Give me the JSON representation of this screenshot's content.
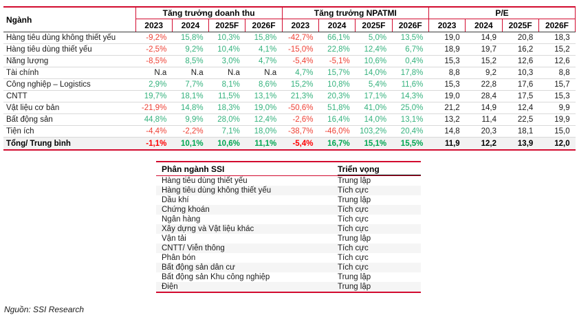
{
  "main_table": {
    "corner_header": "Ngành",
    "groups": [
      {
        "label": "Tăng trưởng doanh thu"
      },
      {
        "label": "Tăng trưởng NPATMI"
      },
      {
        "label": "P/E"
      }
    ],
    "years": [
      "2023",
      "2024",
      "2025F",
      "2026F"
    ],
    "rows": [
      {
        "name": "Hàng tiêu dùng không thiết yếu",
        "values": [
          "-9,2%",
          "15,8%",
          "10,3%",
          "15,8%",
          "-42,7%",
          "66,1%",
          "5,0%",
          "13,5%",
          "19,0",
          "14,9",
          "20,8",
          "18,3"
        ]
      },
      {
        "name": "Hàng tiêu dùng thiết yếu",
        "values": [
          "-2,5%",
          "9,2%",
          "10,4%",
          "4,1%",
          "-15,0%",
          "22,8%",
          "12,4%",
          "6,7%",
          "18,9",
          "19,7",
          "16,2",
          "15,2"
        ]
      },
      {
        "name": "Năng lượng",
        "values": [
          "-8,5%",
          "8,5%",
          "3,0%",
          "4,7%",
          "-5,4%",
          "-5,1%",
          "10,6%",
          "0,4%",
          "15,3",
          "15,2",
          "12,6",
          "12,6"
        ]
      },
      {
        "name": "Tài chính",
        "values": [
          "N.a",
          "N.a",
          "N.a",
          "N.a",
          "4,7%",
          "15,7%",
          "14,0%",
          "17,8%",
          "8,8",
          "9,2",
          "10,3",
          "8,8"
        ]
      },
      {
        "name": "Công nghiệp – Logistics",
        "values": [
          "2,9%",
          "7,7%",
          "8,1%",
          "8,6%",
          "15,2%",
          "10,8%",
          "5,4%",
          "11,6%",
          "15,3",
          "22,8",
          "17,6",
          "15,7"
        ]
      },
      {
        "name": "CNTT",
        "values": [
          "19,7%",
          "18,1%",
          "11,5%",
          "13,1%",
          "21,3%",
          "20,3%",
          "17,1%",
          "14,3%",
          "19,0",
          "28,4",
          "17,5",
          "15,3"
        ]
      },
      {
        "name": "Vật liệu cơ bản",
        "values": [
          "-21,9%",
          "14,8%",
          "18,3%",
          "19,0%",
          "-50,6%",
          "51,8%",
          "41,0%",
          "25,0%",
          "21,2",
          "14,9",
          "12,4",
          "9,9"
        ]
      },
      {
        "name": "Bất động sản",
        "values": [
          "44,8%",
          "9,9%",
          "28,0%",
          "12,4%",
          "-2,6%",
          "16,4%",
          "14,0%",
          "13,1%",
          "13,2",
          "11,4",
          "22,5",
          "19,9"
        ]
      },
      {
        "name": "Tiện ích",
        "values": [
          "-4,4%",
          "-2,2%",
          "7,1%",
          "18,0%",
          "-38,7%",
          "-46,0%",
          "103,2%",
          "20,4%",
          "14,8",
          "20,3",
          "18,1",
          "15,0"
        ]
      }
    ],
    "total_row": {
      "name": "Tổng/ Trung bình",
      "values": [
        "-1,1%",
        "10,1%",
        "10,6%",
        "11,1%",
        "-5,4%",
        "16,7%",
        "15,1%",
        "15,5%",
        "11,9",
        "12,2",
        "13,9",
        "12,0"
      ]
    }
  },
  "outlook_table": {
    "headers": {
      "sector": "Phân ngành SSI",
      "outlook": "Triển vọng"
    },
    "rows": [
      {
        "sector": "Hàng tiêu dùng thiết yếu",
        "outlook": "Trung lập"
      },
      {
        "sector": "Hàng tiêu dùng không thiết yếu",
        "outlook": "Tích cực"
      },
      {
        "sector": "Dầu khí",
        "outlook": "Trung lập"
      },
      {
        "sector": "Chứng khoán",
        "outlook": "Tích cực"
      },
      {
        "sector": "Ngân hàng",
        "outlook": "Tích cực"
      },
      {
        "sector": "Xây dựng và Vật liệu khác",
        "outlook": "Tích cực"
      },
      {
        "sector": "Vận tải",
        "outlook": "Trung lập"
      },
      {
        "sector": "CNTT/ Viễn thông",
        "outlook": "Tích cực"
      },
      {
        "sector": "Phân bón",
        "outlook": "Tích cực"
      },
      {
        "sector": "Bất động sản dân cư",
        "outlook": "Tích cực"
      },
      {
        "sector": "Bất động sản Khu công nghiệp",
        "outlook": "Trung lập"
      },
      {
        "sector": "Điện",
        "outlook": "Trung lập"
      }
    ]
  },
  "footer": {
    "source_note": "Nguồn: SSI Research"
  },
  "colors": {
    "border_red": "#d20a2e",
    "negative_text": "#ee4135",
    "positive_text": "#34b27d",
    "total_negative": "#ff0000",
    "total_positive": "#00a651",
    "total_row_bg": "#f2f2f2",
    "row_separator": "#d9d9d9",
    "alt_row_bg": "#f5f5f5"
  }
}
